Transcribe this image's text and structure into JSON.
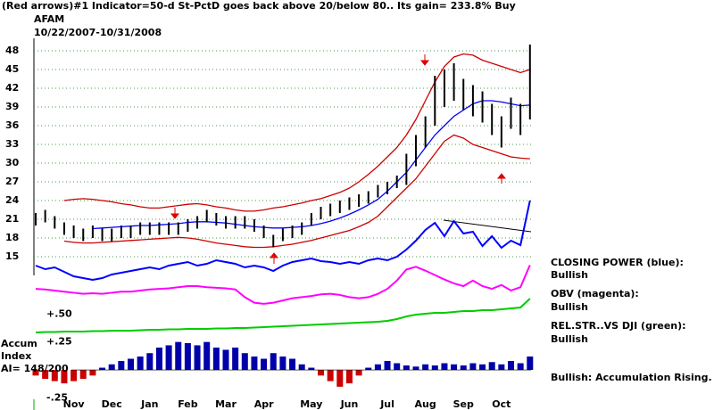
{
  "chart_data": {
    "type": "hilo",
    "title": "(Red arrows)#1 Indicator=50-d St-PctD goes back above 20/below 80.. Its gain= 233.8% Buy",
    "ticker": "AFAM",
    "date_range": "10/22/2007-10/31/2008",
    "categories": [
      null,
      null,
      null,
      null,
      "Nov",
      null,
      null,
      null,
      "Dec",
      null,
      null,
      null,
      "Jan",
      null,
      null,
      null,
      "Feb",
      null,
      null,
      null,
      "Mar",
      null,
      null,
      null,
      "Apr",
      null,
      null,
      null,
      null,
      "May",
      null,
      null,
      null,
      "Jun",
      null,
      null,
      null,
      "Jul",
      null,
      null,
      null,
      "Aug",
      null,
      null,
      null,
      "Sep",
      null,
      null,
      null,
      "Oct",
      null,
      null,
      null
    ],
    "ylim": [
      12,
      50
    ],
    "yticks": [
      15,
      18,
      21,
      24,
      27,
      30,
      33,
      36,
      39,
      42,
      45,
      48
    ],
    "grid": true,
    "bar_color": "#000000",
    "high": [
      22,
      22.5,
      21.5,
      20.5,
      20,
      19.5,
      20,
      19.5,
      19.5,
      20,
      20,
      20.5,
      20.5,
      20.5,
      20.5,
      20.5,
      21,
      21.5,
      22.5,
      22,
      21.5,
      21.5,
      21.5,
      21,
      20,
      18.5,
      19.5,
      20,
      20.5,
      22,
      23,
      23.5,
      24,
      24.5,
      25,
      25.5,
      26.5,
      27,
      28,
      31.5,
      34.5,
      37.5,
      44,
      45,
      46,
      43.5,
      42.5,
      41.5,
      39.5,
      37.5,
      40.5,
      39.5,
      49
    ],
    "low": [
      20,
      20.5,
      19.5,
      18.5,
      18,
      17.5,
      18,
      17.5,
      17.5,
      18,
      18,
      18.5,
      18.5,
      18.5,
      18.5,
      18.5,
      19,
      19.5,
      20.5,
      20,
      19.5,
      19.5,
      19.5,
      19,
      18,
      16.5,
      17.5,
      18,
      18.5,
      20,
      21,
      21.5,
      22,
      22.5,
      23,
      23.5,
      24.5,
      25,
      26,
      26.5,
      29.5,
      32.5,
      36,
      39,
      40,
      38.5,
      37.5,
      36.5,
      34.5,
      32.5,
      35.5,
      34.5,
      37
    ],
    "moving_average": {
      "color": "#0000ff",
      "values": [
        null,
        null,
        null,
        null,
        null,
        null,
        19.5,
        19.6,
        19.7,
        19.8,
        19.9,
        20,
        20,
        20.1,
        20.2,
        20.3,
        20.5,
        20.6,
        20.6,
        20.5,
        20.4,
        20.2,
        20,
        19.8,
        19.7,
        19.6,
        19.6,
        19.7,
        19.8,
        20,
        20.3,
        20.7,
        21.2,
        21.8,
        22.5,
        23.3,
        24.2,
        25.5,
        27,
        28.5,
        30.5,
        32.5,
        34.5,
        36,
        37.5,
        38.5,
        39.5,
        40,
        40,
        39.8,
        39.5,
        39.2,
        39.3
      ]
    },
    "upper_band": {
      "color": "#cc0000",
      "values": [
        null,
        null,
        null,
        24,
        24.2,
        24.3,
        24.2,
        24,
        23.8,
        23.5,
        23.3,
        23,
        22.8,
        22.8,
        23,
        23.2,
        23.4,
        23.5,
        23.3,
        23,
        22.8,
        22.5,
        22.3,
        22.3,
        22.5,
        22.8,
        23,
        23.3,
        23.6,
        24,
        24.3,
        24.8,
        25.3,
        26,
        27,
        28.2,
        29.5,
        31,
        32.5,
        34.5,
        37,
        40,
        43,
        45.5,
        47,
        47.5,
        47.3,
        46.5,
        46,
        45.5,
        45,
        44.5,
        45
      ]
    },
    "lower_band": {
      "color": "#cc0000",
      "values": [
        null,
        null,
        null,
        17.5,
        17.3,
        17.2,
        17.2,
        17.3,
        17.4,
        17.5,
        17.6,
        17.7,
        17.8,
        17.9,
        18,
        18.1,
        18,
        17.8,
        17.5,
        17.2,
        17,
        16.8,
        16.6,
        16.5,
        16.5,
        16.6,
        16.8,
        17,
        17.3,
        17.6,
        18,
        18.4,
        18.8,
        19.2,
        19.8,
        20.5,
        21.5,
        23,
        24.5,
        26,
        27.5,
        29.5,
        31.5,
        33.5,
        34.5,
        34,
        33,
        32.5,
        32,
        31.5,
        31,
        30.8,
        30.7
      ]
    },
    "indicators": [
      {
        "label": "CLOSING POWER (blue):",
        "status": "Bullish",
        "color": "#0000ff",
        "ylim": [
          0,
          100
        ],
        "values": [
          22,
          18,
          20,
          15,
          10,
          8,
          6,
          8,
          12,
          14,
          16,
          18,
          20,
          18,
          22,
          24,
          26,
          22,
          24,
          28,
          26,
          24,
          20,
          22,
          20,
          16,
          22,
          26,
          28,
          30,
          27,
          26,
          24,
          26,
          24,
          28,
          30,
          28,
          32,
          40,
          50,
          62,
          70,
          55,
          72,
          58,
          60,
          44,
          55,
          42,
          50,
          45,
          95
        ]
      },
      {
        "label": "OBV (magenta):",
        "status": "Bullish",
        "color": "#ff00ff",
        "ylim": [
          0,
          100
        ],
        "values": [
          45,
          44,
          42,
          40,
          38,
          36,
          37,
          36,
          38,
          40,
          40,
          42,
          44,
          45,
          46,
          48,
          50,
          50,
          48,
          47,
          46,
          44,
          30,
          20,
          18,
          20,
          24,
          28,
          30,
          32,
          35,
          36,
          34,
          30,
          28,
          30,
          36,
          45,
          60,
          80,
          85,
          78,
          70,
          62,
          55,
          50,
          60,
          50,
          45,
          52,
          42,
          48,
          88
        ]
      },
      {
        "label": "REL.STR..VS DJI (green):",
        "status": "Bullish",
        "color": "#00cc00",
        "ylim": [
          0,
          100
        ],
        "values": [
          14,
          15,
          15,
          16,
          16,
          16,
          17,
          17,
          18,
          18,
          18,
          19,
          20,
          20,
          21,
          21,
          22,
          22,
          22,
          23,
          23,
          24,
          24,
          25,
          26,
          27,
          28,
          29,
          30,
          31,
          32,
          33,
          34,
          35,
          36,
          37,
          38,
          40,
          44,
          50,
          54,
          56,
          58,
          58,
          60,
          62,
          62,
          64,
          64,
          66,
          68,
          70,
          90
        ]
      }
    ],
    "accum": {
      "labels": [
        "Accum",
        "Index"
      ],
      "ai": "AI= 148/200",
      "status": "Bullish: Accumulation Rising.",
      "ylim": [
        -0.35,
        0.55
      ],
      "yticks": [
        {
          "value": -0.25,
          "label": "-.25"
        },
        {
          "value": 0.25,
          "label": "+.25"
        },
        {
          "value": 0.5,
          "label": "+.50"
        }
      ],
      "pos_color": "#0000aa",
      "neg_color": "#cc0000",
      "values": [
        -0.05,
        -0.08,
        -0.1,
        -0.12,
        -0.1,
        -0.08,
        -0.05,
        0.02,
        0.05,
        0.08,
        0.1,
        0.12,
        0.15,
        0.2,
        0.22,
        0.25,
        0.24,
        0.22,
        0.25,
        0.2,
        0.18,
        0.2,
        0.15,
        0.12,
        0.1,
        0.15,
        0.12,
        0.1,
        0.05,
        0.02,
        -0.05,
        -0.1,
        -0.15,
        -0.12,
        -0.05,
        0.02,
        0.05,
        0.08,
        0.06,
        0.04,
        0.03,
        0.05,
        0.04,
        0.06,
        0.05,
        0.04,
        0.06,
        0.05,
        0.07,
        0.05,
        0.08,
        0.06,
        0.12
      ]
    }
  }
}
